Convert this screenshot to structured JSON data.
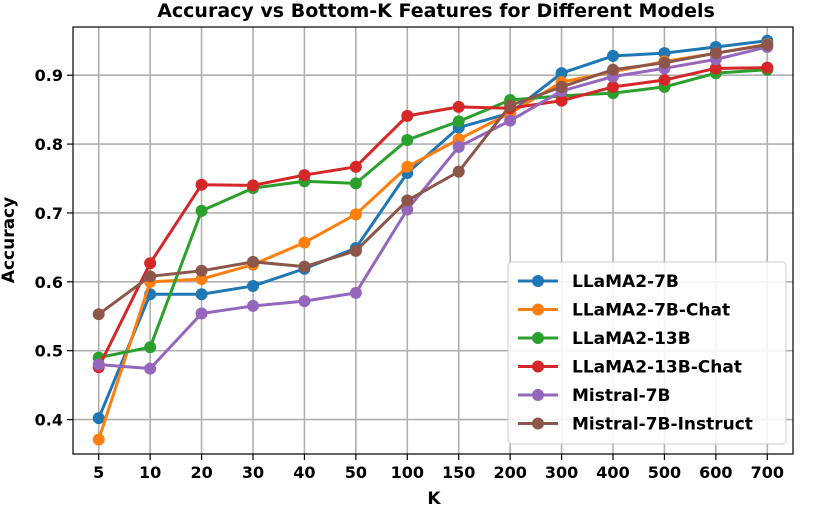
{
  "chart_data": {
    "type": "line",
    "title": "Accuracy vs Bottom-K Features for Different Models",
    "xlabel": "K",
    "ylabel": "Accuracy",
    "categories": [
      "5",
      "10",
      "20",
      "30",
      "40",
      "50",
      "100",
      "150",
      "200",
      "300",
      "400",
      "500",
      "600",
      "700"
    ],
    "ylim": [
      0.35,
      0.97
    ],
    "yticks": [
      0.4,
      0.5,
      0.6,
      0.7,
      0.8,
      0.9
    ],
    "grid": true,
    "legend_position": "lower-right",
    "series": [
      {
        "name": "LLaMA2-7B",
        "color": "#1f77b4",
        "values": [
          0.402,
          0.582,
          0.582,
          0.594,
          0.619,
          0.649,
          0.758,
          0.824,
          0.845,
          0.903,
          0.928,
          0.932,
          0.941,
          0.95
        ]
      },
      {
        "name": "LLaMA2-7B-Chat",
        "color": "#ff7f0e",
        "values": [
          0.371,
          0.6,
          0.604,
          0.625,
          0.657,
          0.698,
          0.767,
          0.807,
          0.845,
          0.89,
          0.905,
          0.92,
          0.932,
          0.945
        ]
      },
      {
        "name": "LLaMA2-13B",
        "color": "#2ca02c",
        "values": [
          0.49,
          0.505,
          0.703,
          0.736,
          0.746,
          0.743,
          0.806,
          0.833,
          0.864,
          0.87,
          0.874,
          0.883,
          0.903,
          0.908
        ]
      },
      {
        "name": "LLaMA2-13B-Chat",
        "color": "#d62728",
        "values": [
          0.476,
          0.627,
          0.741,
          0.74,
          0.755,
          0.767,
          0.841,
          0.854,
          0.852,
          0.863,
          0.883,
          0.893,
          0.91,
          0.911
        ]
      },
      {
        "name": "Mistral-7B",
        "color": "#9467bd",
        "values": [
          0.48,
          0.474,
          0.554,
          0.565,
          0.572,
          0.584,
          0.705,
          0.796,
          0.834,
          0.877,
          0.898,
          0.91,
          0.923,
          0.941
        ]
      },
      {
        "name": "Mistral-7B-Instruct",
        "color": "#8c564b",
        "values": [
          0.553,
          0.608,
          0.616,
          0.629,
          0.622,
          0.645,
          0.718,
          0.76,
          0.856,
          0.883,
          0.908,
          0.918,
          0.932,
          0.944
        ]
      }
    ]
  }
}
